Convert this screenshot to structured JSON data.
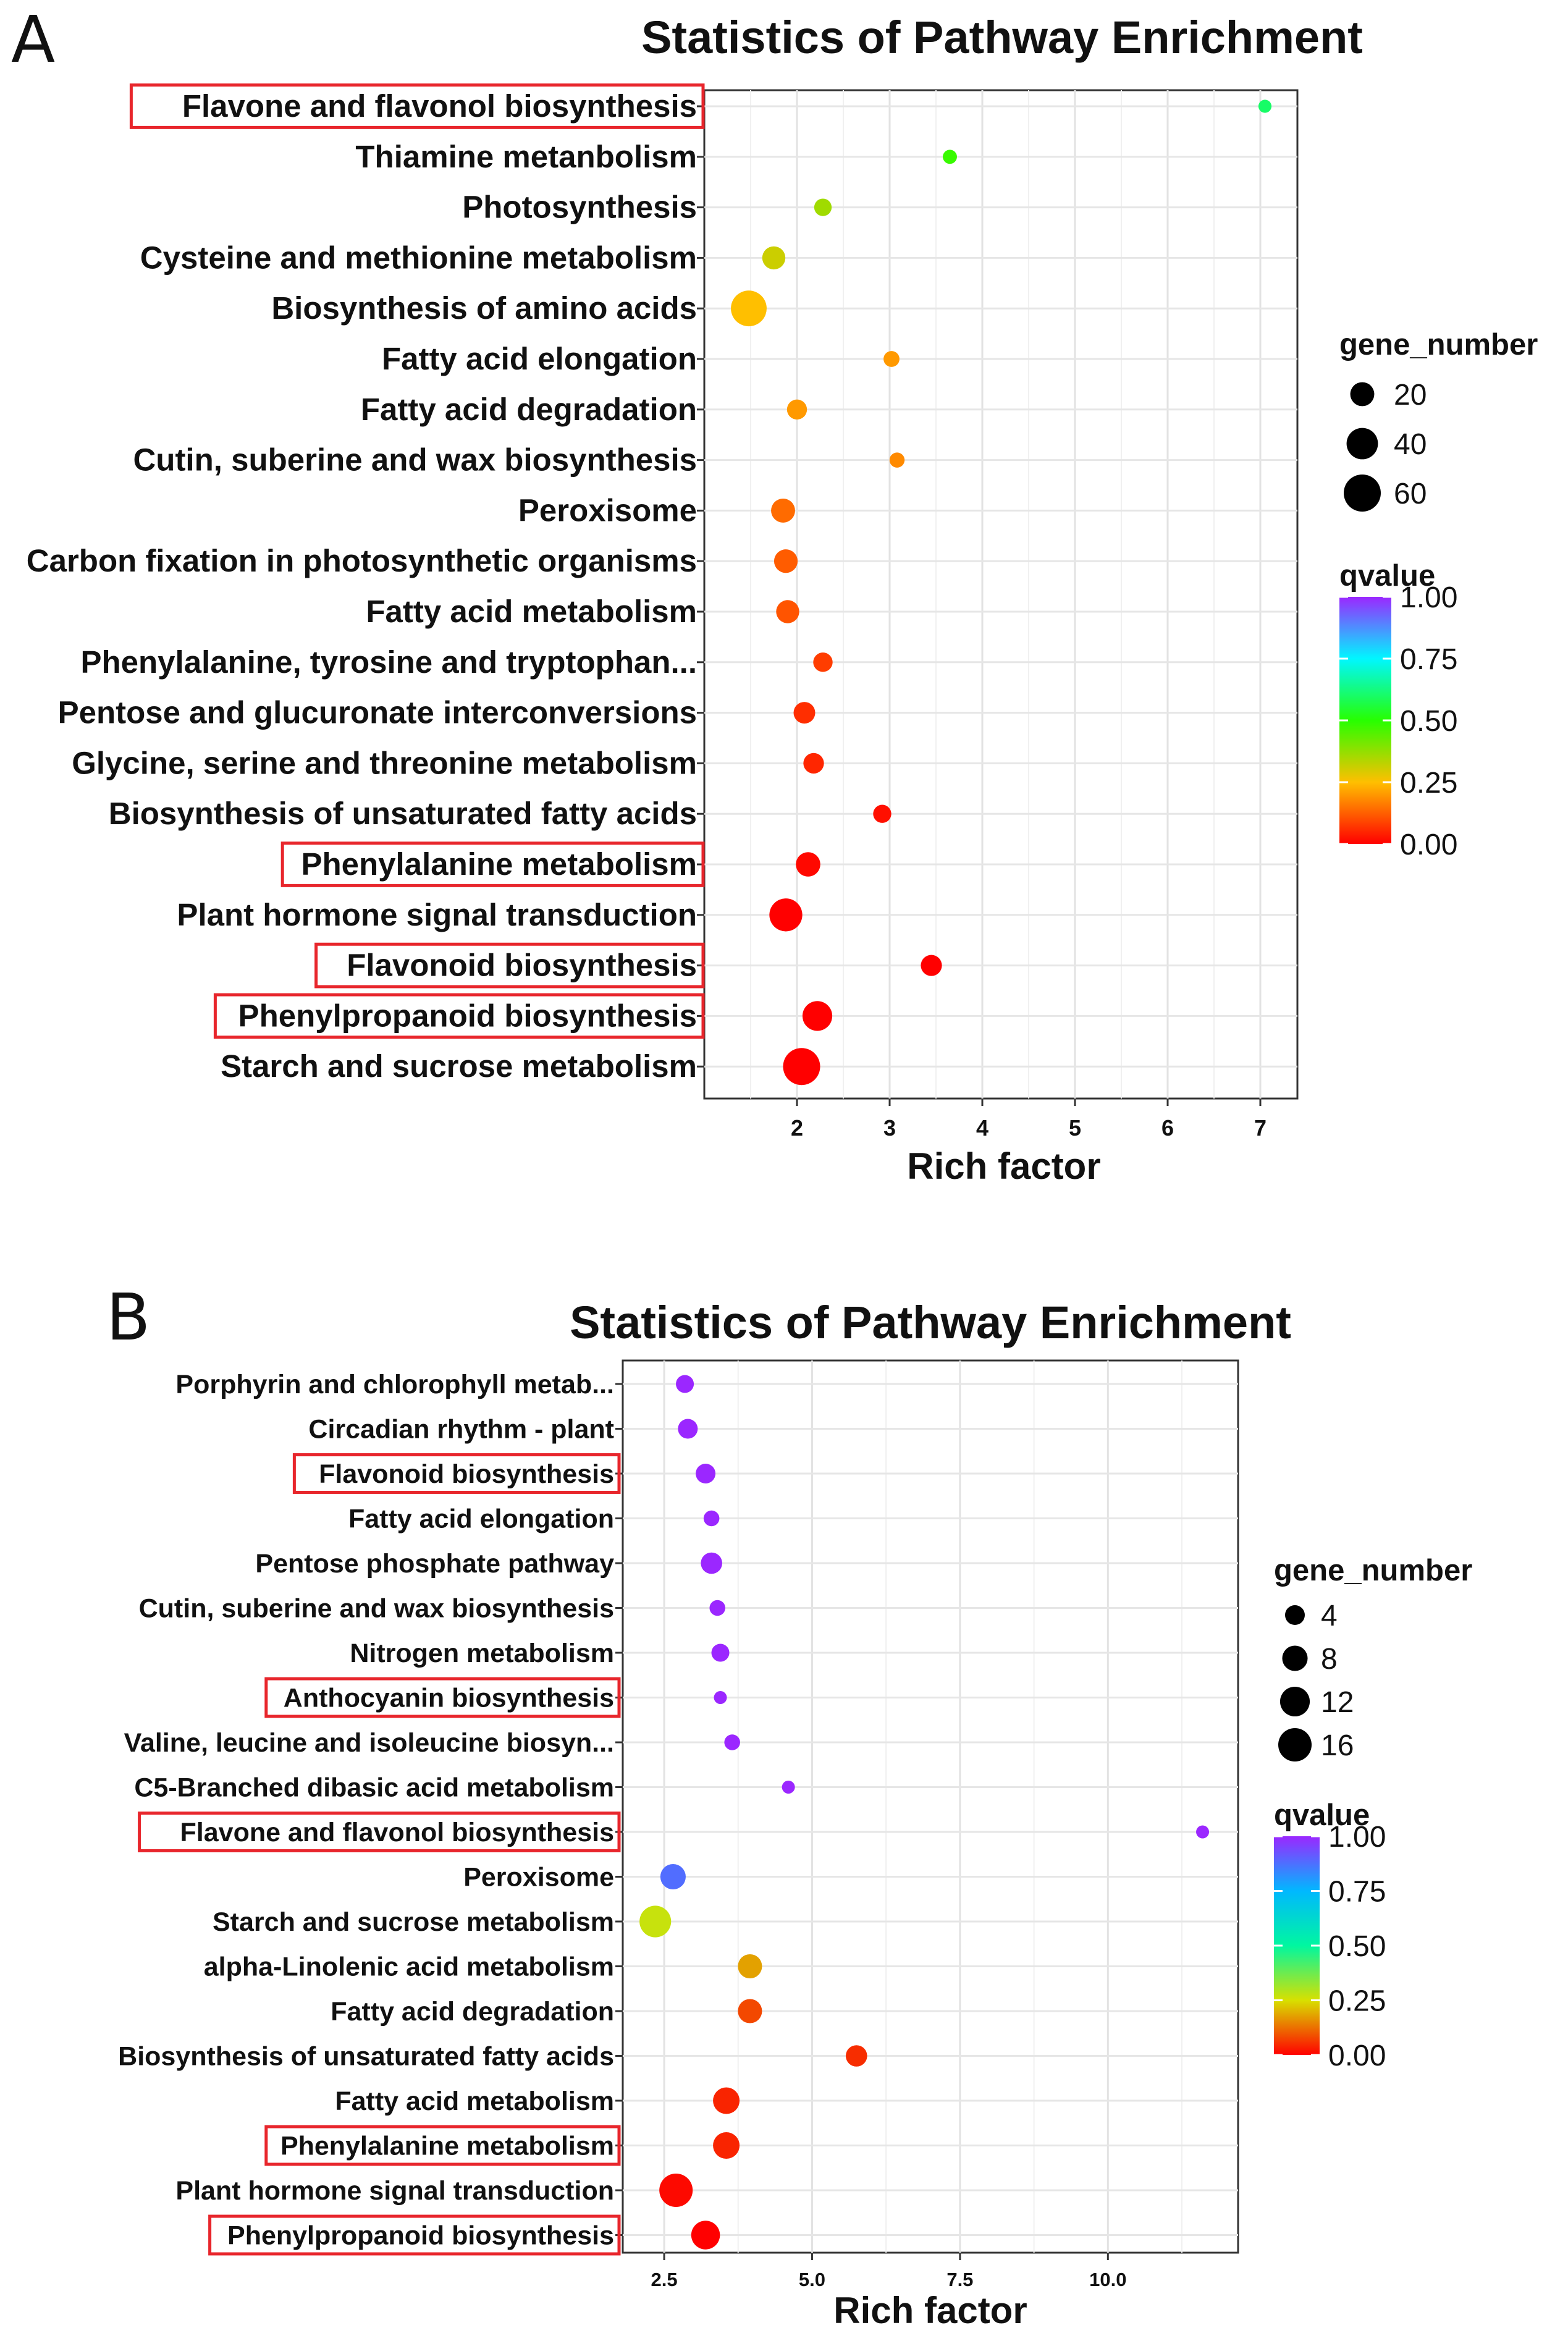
{
  "chart_data": [
    {
      "panel_label": "A",
      "type": "scatter",
      "title": "Statistics of Pathway Enrichment",
      "xlabel": "Rich factor",
      "ylabel": "",
      "xlim": [
        1.0,
        7.4
      ],
      "xticks": [
        2,
        3,
        4,
        5,
        6,
        7
      ],
      "xtick_labels": [
        "2",
        "3",
        "4",
        "5",
        "6",
        "7"
      ],
      "grid": true,
      "categories": [
        "Flavone and flavonol biosynthesis",
        "Thiamine metanbolism",
        "Photosynthesis",
        "Cysteine and methionine metabolism",
        "Biosynthesis of amino acids",
        "Fatty acid elongation",
        "Fatty acid degradation",
        "Cutin, suberine and wax biosynthesis",
        "Peroxisome",
        "Carbon fixation in photosynthetic organisms",
        "Fatty acid metabolism",
        "Phenylalanine, tyrosine and tryptophan...",
        "Pentose and glucuronate interconversions",
        "Glycine, serine and threonine metabolism",
        "Biosynthesis of unsaturated fatty acids",
        "Phenylalanine metabolism",
        "Plant hormone signal transduction",
        "Flavonoid biosynthesis",
        "Phenylpropanoid biosynthesis",
        "Starch and sucrose metabolism"
      ],
      "highlighted": [
        "Flavone and flavonol biosynthesis",
        "Phenylalanine metabolism",
        "Flavonoid biosynthesis",
        "Phenylpropanoid biosynthesis"
      ],
      "rich_factor": [
        7.05,
        3.65,
        2.28,
        1.75,
        1.48,
        3.02,
        2.0,
        3.08,
        1.85,
        1.88,
        1.9,
        2.28,
        2.08,
        2.18,
        2.92,
        2.12,
        1.88,
        3.45,
        2.22,
        2.05
      ],
      "gene_number": [
        3,
        4,
        8,
        18,
        55,
        6,
        12,
        5,
        20,
        19,
        18,
        11,
        15,
        13,
        9,
        21,
        45,
        14,
        35,
        60
      ],
      "qvalue": [
        0.6,
        0.48,
        0.36,
        0.31,
        0.25,
        0.2,
        0.2,
        0.18,
        0.14,
        0.12,
        0.11,
        0.08,
        0.06,
        0.05,
        0.02,
        0.01,
        0.0,
        0.0,
        0.0,
        0.0
      ],
      "size_legend": {
        "title": "gene_number",
        "values": [
          20,
          40,
          60
        ]
      },
      "color_legend": {
        "title": "qvalue",
        "ticks": [
          "1.00",
          "0.75",
          "0.50",
          "0.25",
          "0.00"
        ],
        "colors": [
          "#9b27ff",
          "#00f7ff",
          "#27ff00",
          "#ffbf00",
          "#ff0000"
        ]
      }
    },
    {
      "panel_label": "B",
      "type": "scatter",
      "title": "Statistics of Pathway Enrichment",
      "xlabel": "Rich factor",
      "ylabel": "",
      "xlim": [
        1.8,
        12.2
      ],
      "xticks": [
        2.5,
        5.0,
        7.5,
        10.0
      ],
      "xtick_labels": [
        "2.5",
        "5.0",
        "7.5",
        "10.0"
      ],
      "grid": true,
      "categories": [
        "Porphyrin and chlorophyll metab...",
        "Circadian rhythm - plant",
        "Flavonoid biosynthesis",
        "Fatty acid elongation",
        "Pentose phosphate pathway",
        "Cutin, suberine and wax biosynthesis",
        "Nitrogen metabolism",
        "Anthocyanin biosynthesis",
        "Valine, leucine and isoleucine biosyn...",
        "C5-Branched dibasic acid metabolism",
        "Flavone and flavonol biosynthesis",
        "Peroxisome",
        "Starch and sucrose metabolism",
        "alpha-Linolenic acid metabolism",
        "Fatty acid degradation",
        "Biosynthesis of unsaturated fatty acids",
        "Fatty acid metabolism",
        "Phenylalanine metabolism",
        "Plant hormone signal transduction",
        "Phenylpropanoid biosynthesis"
      ],
      "highlighted": [
        "Flavonoid biosynthesis",
        "Anthocyanin biosynthesis",
        "Flavone and flavonol biosynthesis",
        "Phenylalanine metabolism",
        "Phenylpropanoid biosynthesis"
      ],
      "rich_factor": [
        2.85,
        2.9,
        3.2,
        3.3,
        3.3,
        3.4,
        3.45,
        3.45,
        3.65,
        4.6,
        11.6,
        2.65,
        2.35,
        3.95,
        3.95,
        5.75,
        3.55,
        3.55,
        2.7,
        3.2
      ],
      "gene_number": [
        3,
        4,
        4,
        2,
        5,
        2,
        3,
        1,
        2,
        1,
        1,
        8,
        14,
        7,
        7,
        5,
        9,
        9,
        16,
        11
      ],
      "qvalue": [
        1.0,
        1.0,
        1.0,
        1.0,
        1.0,
        1.0,
        1.0,
        1.0,
        1.0,
        1.0,
        1.0,
        0.88,
        0.27,
        0.18,
        0.08,
        0.05,
        0.04,
        0.04,
        0.01,
        0.0
      ],
      "size_legend": {
        "title": "gene_number",
        "values": [
          4,
          8,
          12,
          16
        ]
      },
      "color_legend": {
        "title": "qvalue",
        "ticks": [
          "1.00",
          "0.75",
          "0.50",
          "0.25",
          "0.00"
        ],
        "colors": [
          "#9b27ff",
          "#00b8ff",
          "#00f7a0",
          "#d8e000",
          "#ff0000"
        ]
      }
    }
  ]
}
